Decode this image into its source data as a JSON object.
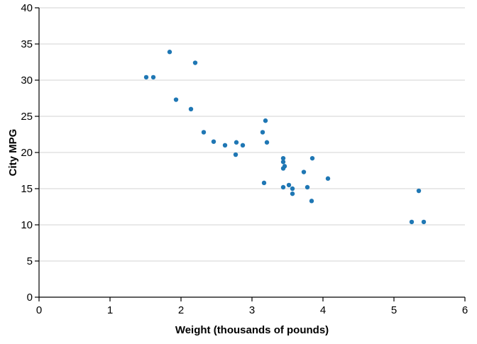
{
  "chart_data": {
    "type": "scatter",
    "xlabel": "Weight (thousands of pounds)",
    "ylabel": "City MPG",
    "xlim": [
      0,
      6
    ],
    "ylim": [
      0,
      40
    ],
    "x_ticks": [
      0,
      1,
      2,
      3,
      4,
      5,
      6
    ],
    "y_ticks": [
      0,
      5,
      10,
      15,
      20,
      25,
      30,
      35,
      40
    ],
    "grid": "horizontal",
    "series": [
      {
        "point_color": "#1f77b4",
        "points": [
          {
            "x": 1.51,
            "y": 30.4
          },
          {
            "x": 1.61,
            "y": 30.4
          },
          {
            "x": 1.84,
            "y": 33.9
          },
          {
            "x": 1.93,
            "y": 27.3
          },
          {
            "x": 2.14,
            "y": 26.0
          },
          {
            "x": 2.2,
            "y": 32.4
          },
          {
            "x": 2.32,
            "y": 22.8
          },
          {
            "x": 2.46,
            "y": 21.5
          },
          {
            "x": 2.62,
            "y": 21.0
          },
          {
            "x": 2.77,
            "y": 19.7
          },
          {
            "x": 2.78,
            "y": 21.4
          },
          {
            "x": 2.87,
            "y": 21.0
          },
          {
            "x": 3.15,
            "y": 22.8
          },
          {
            "x": 3.17,
            "y": 15.8
          },
          {
            "x": 3.19,
            "y": 24.4
          },
          {
            "x": 3.21,
            "y": 21.4
          },
          {
            "x": 3.44,
            "y": 15.2
          },
          {
            "x": 3.44,
            "y": 17.8
          },
          {
            "x": 3.44,
            "y": 18.7
          },
          {
            "x": 3.44,
            "y": 19.2
          },
          {
            "x": 3.46,
            "y": 18.1
          },
          {
            "x": 3.52,
            "y": 15.5
          },
          {
            "x": 3.57,
            "y": 14.3
          },
          {
            "x": 3.57,
            "y": 15.0
          },
          {
            "x": 3.73,
            "y": 17.3
          },
          {
            "x": 3.78,
            "y": 15.2
          },
          {
            "x": 3.84,
            "y": 13.3
          },
          {
            "x": 3.85,
            "y": 19.2
          },
          {
            "x": 4.07,
            "y": 16.4
          },
          {
            "x": 5.25,
            "y": 10.4
          },
          {
            "x": 5.35,
            "y": 14.7
          },
          {
            "x": 5.42,
            "y": 10.4
          }
        ]
      }
    ]
  }
}
